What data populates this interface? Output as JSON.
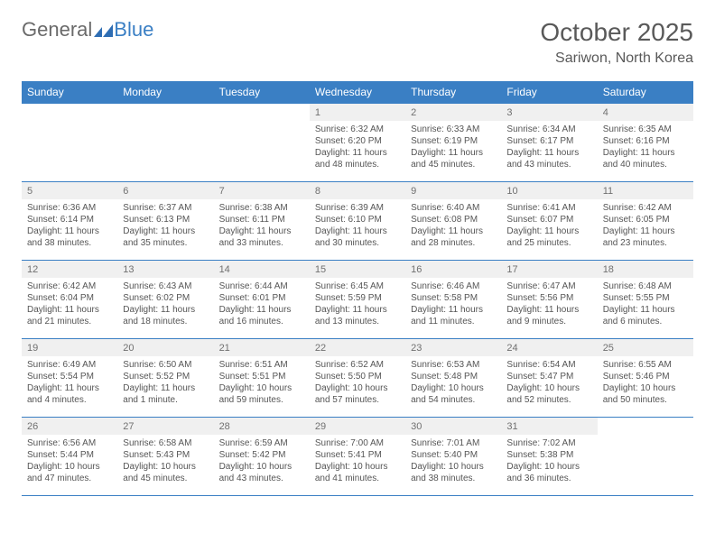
{
  "logo": {
    "text_gray": "General",
    "text_blue": "Blue"
  },
  "title": "October 2025",
  "location": "Sariwon, North Korea",
  "day_headers": [
    "Sunday",
    "Monday",
    "Tuesday",
    "Wednesday",
    "Thursday",
    "Friday",
    "Saturday"
  ],
  "colors": {
    "header_bg": "#3a7fc4",
    "header_text": "#ffffff",
    "daynum_bg": "#f0f0f0",
    "rule": "#3a7fc4",
    "title_color": "#595959",
    "logo_gray": "#6a6a6a",
    "logo_blue": "#3a7fc4"
  },
  "weeks": [
    [
      null,
      null,
      null,
      {
        "n": "1",
        "sunrise": "6:32 AM",
        "sunset": "6:20 PM",
        "daylight": "11 hours and 48 minutes"
      },
      {
        "n": "2",
        "sunrise": "6:33 AM",
        "sunset": "6:19 PM",
        "daylight": "11 hours and 45 minutes"
      },
      {
        "n": "3",
        "sunrise": "6:34 AM",
        "sunset": "6:17 PM",
        "daylight": "11 hours and 43 minutes"
      },
      {
        "n": "4",
        "sunrise": "6:35 AM",
        "sunset": "6:16 PM",
        "daylight": "11 hours and 40 minutes"
      }
    ],
    [
      {
        "n": "5",
        "sunrise": "6:36 AM",
        "sunset": "6:14 PM",
        "daylight": "11 hours and 38 minutes"
      },
      {
        "n": "6",
        "sunrise": "6:37 AM",
        "sunset": "6:13 PM",
        "daylight": "11 hours and 35 minutes"
      },
      {
        "n": "7",
        "sunrise": "6:38 AM",
        "sunset": "6:11 PM",
        "daylight": "11 hours and 33 minutes"
      },
      {
        "n": "8",
        "sunrise": "6:39 AM",
        "sunset": "6:10 PM",
        "daylight": "11 hours and 30 minutes"
      },
      {
        "n": "9",
        "sunrise": "6:40 AM",
        "sunset": "6:08 PM",
        "daylight": "11 hours and 28 minutes"
      },
      {
        "n": "10",
        "sunrise": "6:41 AM",
        "sunset": "6:07 PM",
        "daylight": "11 hours and 25 minutes"
      },
      {
        "n": "11",
        "sunrise": "6:42 AM",
        "sunset": "6:05 PM",
        "daylight": "11 hours and 23 minutes"
      }
    ],
    [
      {
        "n": "12",
        "sunrise": "6:42 AM",
        "sunset": "6:04 PM",
        "daylight": "11 hours and 21 minutes"
      },
      {
        "n": "13",
        "sunrise": "6:43 AM",
        "sunset": "6:02 PM",
        "daylight": "11 hours and 18 minutes"
      },
      {
        "n": "14",
        "sunrise": "6:44 AM",
        "sunset": "6:01 PM",
        "daylight": "11 hours and 16 minutes"
      },
      {
        "n": "15",
        "sunrise": "6:45 AM",
        "sunset": "5:59 PM",
        "daylight": "11 hours and 13 minutes"
      },
      {
        "n": "16",
        "sunrise": "6:46 AM",
        "sunset": "5:58 PM",
        "daylight": "11 hours and 11 minutes"
      },
      {
        "n": "17",
        "sunrise": "6:47 AM",
        "sunset": "5:56 PM",
        "daylight": "11 hours and 9 minutes"
      },
      {
        "n": "18",
        "sunrise": "6:48 AM",
        "sunset": "5:55 PM",
        "daylight": "11 hours and 6 minutes"
      }
    ],
    [
      {
        "n": "19",
        "sunrise": "6:49 AM",
        "sunset": "5:54 PM",
        "daylight": "11 hours and 4 minutes"
      },
      {
        "n": "20",
        "sunrise": "6:50 AM",
        "sunset": "5:52 PM",
        "daylight": "11 hours and 1 minute"
      },
      {
        "n": "21",
        "sunrise": "6:51 AM",
        "sunset": "5:51 PM",
        "daylight": "10 hours and 59 minutes"
      },
      {
        "n": "22",
        "sunrise": "6:52 AM",
        "sunset": "5:50 PM",
        "daylight": "10 hours and 57 minutes"
      },
      {
        "n": "23",
        "sunrise": "6:53 AM",
        "sunset": "5:48 PM",
        "daylight": "10 hours and 54 minutes"
      },
      {
        "n": "24",
        "sunrise": "6:54 AM",
        "sunset": "5:47 PM",
        "daylight": "10 hours and 52 minutes"
      },
      {
        "n": "25",
        "sunrise": "6:55 AM",
        "sunset": "5:46 PM",
        "daylight": "10 hours and 50 minutes"
      }
    ],
    [
      {
        "n": "26",
        "sunrise": "6:56 AM",
        "sunset": "5:44 PM",
        "daylight": "10 hours and 47 minutes"
      },
      {
        "n": "27",
        "sunrise": "6:58 AM",
        "sunset": "5:43 PM",
        "daylight": "10 hours and 45 minutes"
      },
      {
        "n": "28",
        "sunrise": "6:59 AM",
        "sunset": "5:42 PM",
        "daylight": "10 hours and 43 minutes"
      },
      {
        "n": "29",
        "sunrise": "7:00 AM",
        "sunset": "5:41 PM",
        "daylight": "10 hours and 41 minutes"
      },
      {
        "n": "30",
        "sunrise": "7:01 AM",
        "sunset": "5:40 PM",
        "daylight": "10 hours and 38 minutes"
      },
      {
        "n": "31",
        "sunrise": "7:02 AM",
        "sunset": "5:38 PM",
        "daylight": "10 hours and 36 minutes"
      },
      null
    ]
  ]
}
